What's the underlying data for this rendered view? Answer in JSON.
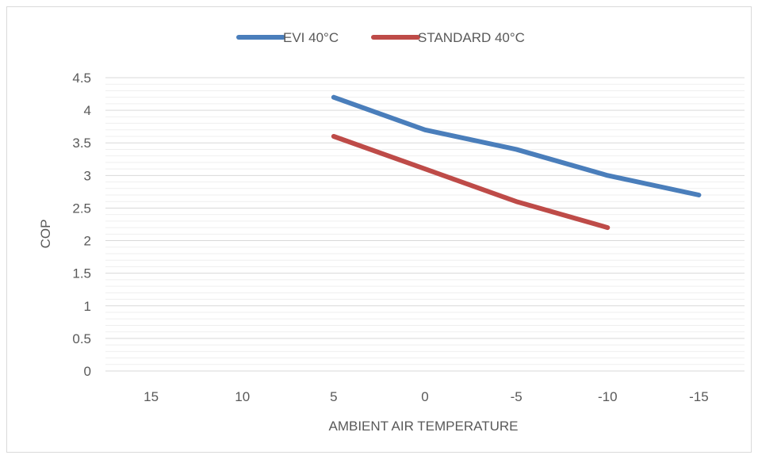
{
  "chart_data": {
    "type": "line",
    "title": "",
    "xlabel": "AMBIENT AIR TEMPERATURE",
    "ylabel": "COP",
    "categories": [
      "15",
      "10",
      "5",
      "0",
      "-5",
      "-10",
      "-15"
    ],
    "ylim": [
      0,
      4.5
    ],
    "yticks": [
      "0",
      "0.5",
      "1",
      "1.5",
      "2",
      "2.5",
      "3",
      "3.5",
      "4",
      "4.5"
    ],
    "grid": true,
    "legend_position": "top",
    "series": [
      {
        "name": "EVI 40°C",
        "color": "#4a7ebb",
        "values": [
          null,
          null,
          4.2,
          3.7,
          3.4,
          3.0,
          2.7
        ]
      },
      {
        "name": "STANDARD 40°C",
        "color": "#be4b48",
        "values": [
          null,
          null,
          3.6,
          3.1,
          2.6,
          2.2,
          null
        ]
      }
    ]
  }
}
